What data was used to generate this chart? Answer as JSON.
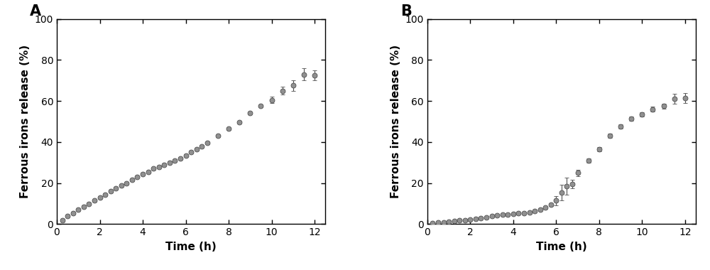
{
  "panel_A": {
    "label": "A",
    "x": [
      0.25,
      0.5,
      0.75,
      1.0,
      1.25,
      1.5,
      1.75,
      2.0,
      2.25,
      2.5,
      2.75,
      3.0,
      3.25,
      3.5,
      3.75,
      4.0,
      4.25,
      4.5,
      4.75,
      5.0,
      5.25,
      5.5,
      5.75,
      6.0,
      6.25,
      6.5,
      6.75,
      7.0,
      7.5,
      8.0,
      8.5,
      9.0,
      9.5,
      10.0,
      10.5,
      11.0,
      11.5,
      12.0
    ],
    "y": [
      2.0,
      4.0,
      5.5,
      7.0,
      8.5,
      10.0,
      11.5,
      13.0,
      14.5,
      16.0,
      17.5,
      19.0,
      20.0,
      21.5,
      23.0,
      24.5,
      25.5,
      27.0,
      28.0,
      29.0,
      30.0,
      31.0,
      32.0,
      33.5,
      35.0,
      36.5,
      38.0,
      39.5,
      43.0,
      46.5,
      49.5,
      54.0,
      57.5,
      60.5,
      65.0,
      67.5,
      73.0,
      72.5
    ],
    "yerr": [
      0.4,
      0.4,
      0.5,
      0.5,
      0.5,
      0.5,
      0.5,
      0.5,
      0.5,
      0.5,
      0.5,
      0.5,
      0.5,
      0.5,
      0.5,
      0.5,
      0.5,
      0.5,
      0.5,
      0.5,
      0.5,
      0.5,
      0.5,
      0.5,
      0.5,
      0.5,
      0.5,
      0.5,
      0.5,
      0.5,
      0.5,
      0.5,
      0.5,
      1.5,
      2.0,
      2.5,
      3.0,
      2.5
    ],
    "xlabel": "Time (h)",
    "ylabel": "Ferrous irons release (%)",
    "xlim": [
      0,
      12.5
    ],
    "ylim": [
      0,
      100
    ],
    "xticks": [
      0,
      2,
      4,
      6,
      8,
      10,
      12
    ],
    "yticks": [
      0,
      20,
      40,
      60,
      80,
      100
    ]
  },
  "panel_B": {
    "label": "B",
    "x": [
      0.25,
      0.5,
      0.75,
      1.0,
      1.25,
      1.5,
      1.75,
      2.0,
      2.25,
      2.5,
      2.75,
      3.0,
      3.25,
      3.5,
      3.75,
      4.0,
      4.25,
      4.5,
      4.75,
      5.0,
      5.25,
      5.5,
      5.75,
      6.0,
      6.25,
      6.5,
      6.75,
      7.0,
      7.5,
      8.0,
      8.5,
      9.0,
      9.5,
      10.0,
      10.5,
      11.0,
      11.5,
      12.0
    ],
    "y": [
      0.5,
      0.8,
      1.0,
      1.2,
      1.5,
      1.8,
      2.0,
      2.3,
      2.5,
      3.0,
      3.3,
      3.8,
      4.2,
      4.5,
      4.8,
      5.0,
      5.2,
      5.5,
      5.8,
      6.2,
      7.0,
      8.0,
      9.5,
      11.5,
      15.5,
      18.5,
      19.5,
      25.0,
      31.0,
      36.5,
      43.0,
      47.5,
      51.5,
      53.5,
      56.0,
      57.5,
      61.0,
      61.5
    ],
    "yerr": [
      0.3,
      0.3,
      0.3,
      0.3,
      0.3,
      0.3,
      0.3,
      0.3,
      0.3,
      0.3,
      0.3,
      0.3,
      0.3,
      0.3,
      0.3,
      0.3,
      0.3,
      0.3,
      0.3,
      0.4,
      0.4,
      0.5,
      0.8,
      2.2,
      3.8,
      4.0,
      2.2,
      1.5,
      1.0,
      1.0,
      1.0,
      1.0,
      1.0,
      1.0,
      1.2,
      1.2,
      2.5,
      2.5
    ],
    "xlabel": "Time (h)",
    "ylabel": "Ferrous irons release (%)",
    "xlim": [
      0,
      12.5
    ],
    "ylim": [
      0,
      100
    ],
    "xticks": [
      0,
      2,
      4,
      6,
      8,
      10,
      12
    ],
    "yticks": [
      0,
      20,
      40,
      60,
      80,
      100
    ]
  },
  "marker_color": "#909090",
  "marker_edge_color": "#505050",
  "marker_size": 5,
  "marker_style": "o",
  "capsize": 2.5,
  "capthick": 0.8,
  "elinewidth": 0.8,
  "markeredgewidth": 0.6,
  "background_color": "#ffffff",
  "label_fontsize": 11,
  "tick_fontsize": 10,
  "panel_label_fontsize": 15,
  "spine_linewidth": 1.0
}
